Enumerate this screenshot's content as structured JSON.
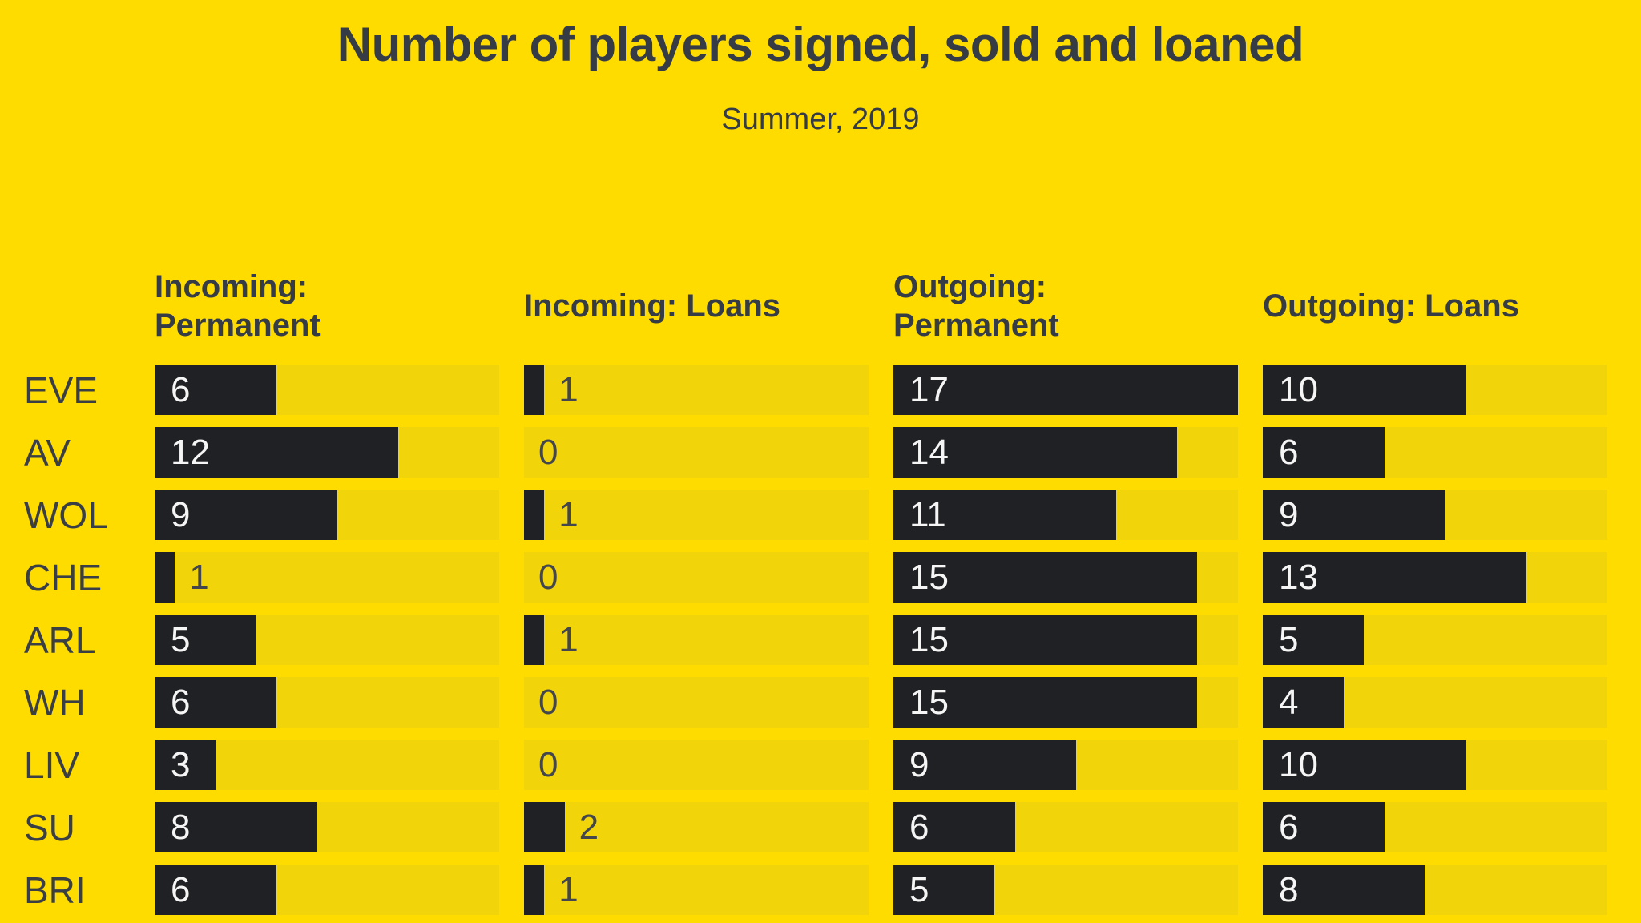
{
  "title": "Number of players signed, sold and loaned",
  "subtitle": "Summer, 2019",
  "headers": [
    {
      "id": "incoming-permanent",
      "display": "Incoming:\nPermanent"
    },
    {
      "id": "incoming-loans",
      "display": "Incoming: Loans"
    },
    {
      "id": "outgoing-permanent",
      "display": "Outgoing:\nPermanent"
    },
    {
      "id": "outgoing-loans",
      "display": "Outgoing: Loans"
    }
  ],
  "chart_data": {
    "type": "bar",
    "orientation": "horizontal",
    "title": "Number of players signed, sold and loaned",
    "subtitle": "Summer, 2019",
    "categories": [
      "EVE",
      "AV",
      "WOL",
      "CHE",
      "ARL",
      "WH",
      "LIV",
      "SU",
      "BRI"
    ],
    "series": [
      {
        "name": "Incoming: Permanent",
        "values": [
          6,
          12,
          9,
          1,
          5,
          6,
          3,
          8,
          6
        ]
      },
      {
        "name": "Incoming: Loans",
        "values": [
          1,
          0,
          1,
          0,
          1,
          0,
          0,
          2,
          1
        ]
      },
      {
        "name": "Outgoing: Permanent",
        "values": [
          17,
          14,
          11,
          15,
          15,
          15,
          9,
          6,
          5
        ]
      },
      {
        "name": "Outgoing: Loans",
        "values": [
          10,
          6,
          9,
          13,
          5,
          4,
          10,
          6,
          8
        ]
      }
    ],
    "xlim": [
      0,
      17
    ],
    "grid": false,
    "legend_position": "column headers above each bar group",
    "value_labels": {
      "placement_rule": "inside left of bar when value >= 3, otherwise right of bar end"
    },
    "colors": {
      "background": "#FFDC00",
      "track": "#F1D40A",
      "bar": "#202124",
      "text": "#363C46",
      "team_label": "#3A3F46",
      "value_inside": "#F5F5F5",
      "value_outside": "#43474D"
    }
  }
}
